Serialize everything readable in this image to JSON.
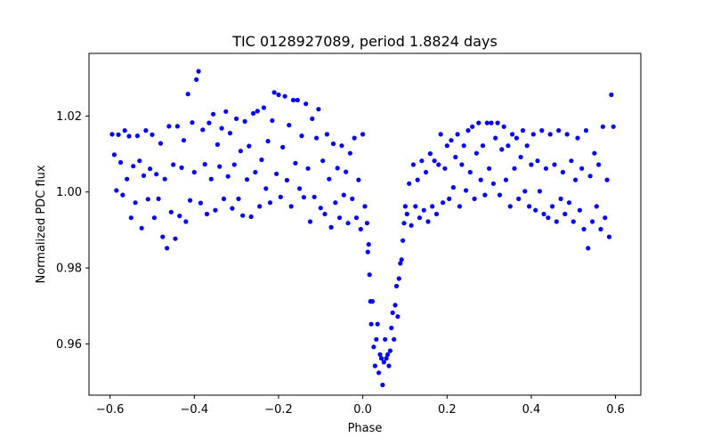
{
  "chart_data": {
    "type": "scatter",
    "title": "TIC 0128927089, period 1.8824 days",
    "xlabel": "Phase",
    "ylabel": "Normalized PDC flux",
    "xlim": [
      -0.65,
      0.66
    ],
    "ylim": [
      0.9465,
      1.0365
    ],
    "x_ticks": [
      -0.6,
      -0.4,
      -0.2,
      0.0,
      0.2,
      0.4,
      0.6
    ],
    "x_tick_labels": [
      "−0.6",
      "−0.4",
      "−0.2",
      "0.0",
      "0.2",
      "0.4",
      "0.6"
    ],
    "y_ticks": [
      0.96,
      0.98,
      1.0,
      1.02
    ],
    "y_tick_labels": [
      "0.96",
      "0.98",
      "1.00",
      "1.02"
    ],
    "marker_color": "#0000ff",
    "grid": false,
    "series": [
      {
        "name": "PDC flux",
        "points": [
          [
            -0.595,
            1.0152
          ],
          [
            -0.59,
            1.0098
          ],
          [
            -0.585,
            1.0004
          ],
          [
            -0.58,
            1.0151
          ],
          [
            -0.575,
            1.0078
          ],
          [
            -0.57,
            0.9992
          ],
          [
            -0.565,
            1.0162
          ],
          [
            -0.56,
            1.0034
          ],
          [
            -0.555,
            1.0147
          ],
          [
            -0.55,
            0.9932
          ],
          [
            -0.545,
            1.0068
          ],
          [
            -0.54,
            0.9972
          ],
          [
            -0.535,
            1.0148
          ],
          [
            -0.53,
            1.0082
          ],
          [
            -0.525,
            0.9905
          ],
          [
            -0.52,
            1.0043
          ],
          [
            -0.515,
            1.0162
          ],
          [
            -0.51,
            0.9981
          ],
          [
            -0.505,
            1.0061
          ],
          [
            -0.5,
            1.0151
          ],
          [
            -0.495,
            0.9932
          ],
          [
            -0.49,
            1.0047
          ],
          [
            -0.485,
            0.9982
          ],
          [
            -0.48,
            1.0128
          ],
          [
            -0.475,
            0.9882
          ],
          [
            -0.47,
            1.0034
          ],
          [
            -0.465,
            0.9852
          ],
          [
            -0.46,
            1.0173
          ],
          [
            -0.455,
            0.9947
          ],
          [
            -0.45,
            1.0072
          ],
          [
            -0.445,
            0.9877
          ],
          [
            -0.44,
            1.0173
          ],
          [
            -0.435,
            0.9937
          ],
          [
            -0.43,
            1.0064
          ],
          [
            -0.425,
            1.0136
          ],
          [
            -0.42,
            0.9922
          ],
          [
            -0.415,
            1.0258
          ],
          [
            -0.41,
            0.9978
          ],
          [
            -0.405,
            1.0183
          ],
          [
            -0.4,
            1.0052
          ],
          [
            -0.395,
            1.0296
          ],
          [
            -0.39,
            1.0318
          ],
          [
            -0.385,
            0.9971
          ],
          [
            -0.38,
            1.0164
          ],
          [
            -0.375,
            1.0073
          ],
          [
            -0.37,
            0.9942
          ],
          [
            -0.365,
            1.0182
          ],
          [
            -0.36,
            1.0034
          ],
          [
            -0.355,
            1.0205
          ],
          [
            -0.35,
            0.9952
          ],
          [
            -0.345,
            1.0125
          ],
          [
            -0.34,
            1.0067
          ],
          [
            -0.335,
            1.0168
          ],
          [
            -0.33,
            0.9982
          ],
          [
            -0.325,
            1.0212
          ],
          [
            -0.32,
            1.0041
          ],
          [
            -0.315,
            1.0155
          ],
          [
            -0.31,
            0.9957
          ],
          [
            -0.305,
            1.0072
          ],
          [
            -0.3,
            1.0193
          ],
          [
            -0.295,
            0.9982
          ],
          [
            -0.29,
            1.0108
          ],
          [
            -0.285,
            0.9938
          ],
          [
            -0.28,
            1.0186
          ],
          [
            -0.275,
            1.0033
          ],
          [
            -0.27,
            1.0121
          ],
          [
            -0.265,
            0.9935
          ],
          [
            -0.26,
            1.0207
          ],
          [
            -0.255,
            1.0052
          ],
          [
            -0.25,
            1.0213
          ],
          [
            -0.245,
            0.9962
          ],
          [
            -0.24,
            1.0085
          ],
          [
            -0.235,
            1.0222
          ],
          [
            -0.23,
            1.0009
          ],
          [
            -0.225,
            1.0134
          ],
          [
            -0.22,
            0.9972
          ],
          [
            -0.215,
            1.0188
          ],
          [
            -0.21,
            1.0262
          ],
          [
            -0.205,
            1.0048
          ],
          [
            -0.2,
            1.0256
          ],
          [
            -0.195,
            0.9987
          ],
          [
            -0.19,
            1.0118
          ],
          [
            -0.185,
            1.0252
          ],
          [
            -0.18,
            1.0031
          ],
          [
            -0.175,
            1.0176
          ],
          [
            -0.17,
            0.9962
          ],
          [
            -0.165,
            1.0242
          ],
          [
            -0.16,
            1.0076
          ],
          [
            -0.155,
            1.0242
          ],
          [
            -0.15,
            1.0009
          ],
          [
            -0.145,
            1.0148
          ],
          [
            -0.14,
            0.9986
          ],
          [
            -0.135,
            1.0232
          ],
          [
            -0.13,
            1.0062
          ],
          [
            -0.125,
            0.9922
          ],
          [
            -0.12,
            1.0193
          ],
          [
            -0.115,
            0.9987
          ],
          [
            -0.11,
            1.0142
          ],
          [
            -0.105,
            1.0218
          ],
          [
            -0.1,
            0.9958
          ],
          [
            -0.095,
            1.0082
          ],
          [
            -0.09,
            0.9942
          ],
          [
            -0.085,
            1.0152
          ],
          [
            -0.08,
            1.0034
          ],
          [
            -0.075,
            0.9907
          ],
          [
            -0.07,
            1.0127
          ],
          [
            -0.065,
            0.9972
          ],
          [
            -0.06,
            1.0063
          ],
          [
            -0.055,
            0.9932
          ],
          [
            -0.05,
            1.0122
          ],
          [
            -0.045,
            0.9992
          ],
          [
            -0.04,
            1.0053
          ],
          [
            -0.035,
            0.9918
          ],
          [
            -0.03,
            1.0102
          ],
          [
            -0.025,
            0.9982
          ],
          [
            -0.02,
            1.0142
          ],
          [
            -0.015,
            0.9932
          ],
          [
            -0.01,
            1.0032
          ],
          [
            -0.005,
            0.9902
          ],
          [
            0.0,
            1.0152
          ],
          [
            0.005,
            0.9962
          ],
          [
            0.01,
            0.9918
          ],
          [
            0.012,
            0.9842
          ],
          [
            0.014,
            0.9862
          ],
          [
            0.016,
            0.9782
          ],
          [
            0.018,
            0.9712
          ],
          [
            0.02,
            0.9652
          ],
          [
            0.023,
            0.9712
          ],
          [
            0.026,
            0.9592
          ],
          [
            0.029,
            0.9542
          ],
          [
            0.032,
            0.9612
          ],
          [
            0.035,
            0.9652
          ],
          [
            0.038,
            0.9524
          ],
          [
            0.041,
            0.9572
          ],
          [
            0.044,
            0.9562
          ],
          [
            0.047,
            0.9492
          ],
          [
            0.05,
            0.9552
          ],
          [
            0.053,
            0.9612
          ],
          [
            0.056,
            0.9562
          ],
          [
            0.059,
            0.9572
          ],
          [
            0.062,
            0.9542
          ],
          [
            0.065,
            0.9582
          ],
          [
            0.068,
            0.9642
          ],
          [
            0.071,
            0.9682
          ],
          [
            0.074,
            0.9612
          ],
          [
            0.077,
            0.9702
          ],
          [
            0.08,
            0.9752
          ],
          [
            0.083,
            0.9672
          ],
          [
            0.086,
            0.9772
          ],
          [
            0.089,
            0.9812
          ],
          [
            0.092,
            0.9822
          ],
          [
            0.095,
            0.9872
          ],
          [
            0.098,
            0.9918
          ],
          [
            0.101,
            0.9962
          ],
          [
            0.105,
            0.9942
          ],
          [
            0.11,
            1.0022
          ],
          [
            0.115,
            0.9912
          ],
          [
            0.12,
            1.0072
          ],
          [
            0.125,
            0.9962
          ],
          [
            0.13,
            1.0032
          ],
          [
            0.135,
            0.9932
          ],
          [
            0.14,
            1.0082
          ],
          [
            0.145,
            0.9952
          ],
          [
            0.15,
            1.0052
          ],
          [
            0.155,
            0.9922
          ],
          [
            0.16,
            1.0101
          ],
          [
            0.165,
            0.9962
          ],
          [
            0.17,
            1.0082
          ],
          [
            0.175,
            0.9942
          ],
          [
            0.18,
            1.0072
          ],
          [
            0.185,
            1.0152
          ],
          [
            0.19,
            0.9972
          ],
          [
            0.195,
            1.0062
          ],
          [
            0.2,
            1.0122
          ],
          [
            0.205,
            0.9982
          ],
          [
            0.21,
            1.0136
          ],
          [
            0.215,
            1.0012
          ],
          [
            0.22,
            1.0092
          ],
          [
            0.225,
            1.0152
          ],
          [
            0.23,
            0.9962
          ],
          [
            0.235,
            1.0072
          ],
          [
            0.24,
            1.0122
          ],
          [
            0.245,
            1.0004
          ],
          [
            0.25,
            1.0162
          ],
          [
            0.255,
            1.0052
          ],
          [
            0.26,
            1.0172
          ],
          [
            0.265,
            0.9982
          ],
          [
            0.27,
            1.0102
          ],
          [
            0.275,
            1.0182
          ],
          [
            0.28,
            1.0032
          ],
          [
            0.285,
            1.0122
          ],
          [
            0.29,
            0.9992
          ],
          [
            0.295,
            1.0182
          ],
          [
            0.3,
            1.0062
          ],
          [
            0.305,
            1.0182
          ],
          [
            0.31,
            1.0022
          ],
          [
            0.315,
            1.0142
          ],
          [
            0.32,
            1.0182
          ],
          [
            0.325,
            0.9992
          ],
          [
            0.33,
            1.0112
          ],
          [
            0.335,
            1.0172
          ],
          [
            0.34,
            1.0032
          ],
          [
            0.345,
            1.0122
          ],
          [
            0.35,
            0.9962
          ],
          [
            0.355,
            1.0152
          ],
          [
            0.36,
            1.0062
          ],
          [
            0.365,
            1.0142
          ],
          [
            0.37,
            0.9982
          ],
          [
            0.375,
            1.0092
          ],
          [
            0.38,
            1.0162
          ],
          [
            0.385,
            1.0002
          ],
          [
            0.39,
            1.0122
          ],
          [
            0.395,
            0.9962
          ],
          [
            0.4,
            1.0072
          ],
          [
            0.405,
            1.0152
          ],
          [
            0.41,
            0.9952
          ],
          [
            0.415,
            1.0082
          ],
          [
            0.42,
            1.0002
          ],
          [
            0.425,
            1.0162
          ],
          [
            0.43,
            0.9942
          ],
          [
            0.435,
            1.0062
          ],
          [
            0.44,
            0.9932
          ],
          [
            0.445,
            1.0152
          ],
          [
            0.45,
            0.9962
          ],
          [
            0.455,
            1.0072
          ],
          [
            0.46,
            0.9922
          ],
          [
            0.465,
            1.0162
          ],
          [
            0.47,
            0.9982
          ],
          [
            0.475,
            1.0052
          ],
          [
            0.48,
            0.9942
          ],
          [
            0.485,
            1.0152
          ],
          [
            0.49,
            0.9972
          ],
          [
            0.495,
            1.0082
          ],
          [
            0.5,
            0.9922
          ],
          [
            0.505,
            1.0032
          ],
          [
            0.51,
            1.0142
          ],
          [
            0.515,
            0.9952
          ],
          [
            0.52,
            1.0062
          ],
          [
            0.525,
            0.9902
          ],
          [
            0.53,
            1.0162
          ],
          [
            0.535,
            0.9852
          ],
          [
            0.54,
            1.0042
          ],
          [
            0.545,
            0.9922
          ],
          [
            0.55,
            1.0102
          ],
          [
            0.555,
            0.9962
          ],
          [
            0.56,
            1.0072
          ],
          [
            0.565,
            0.9902
          ],
          [
            0.57,
            1.0172
          ],
          [
            0.575,
            0.9932
          ],
          [
            0.58,
            1.0032
          ],
          [
            0.585,
            0.9882
          ],
          [
            0.59,
            1.0256
          ],
          [
            0.595,
            1.0172
          ]
        ]
      }
    ]
  }
}
